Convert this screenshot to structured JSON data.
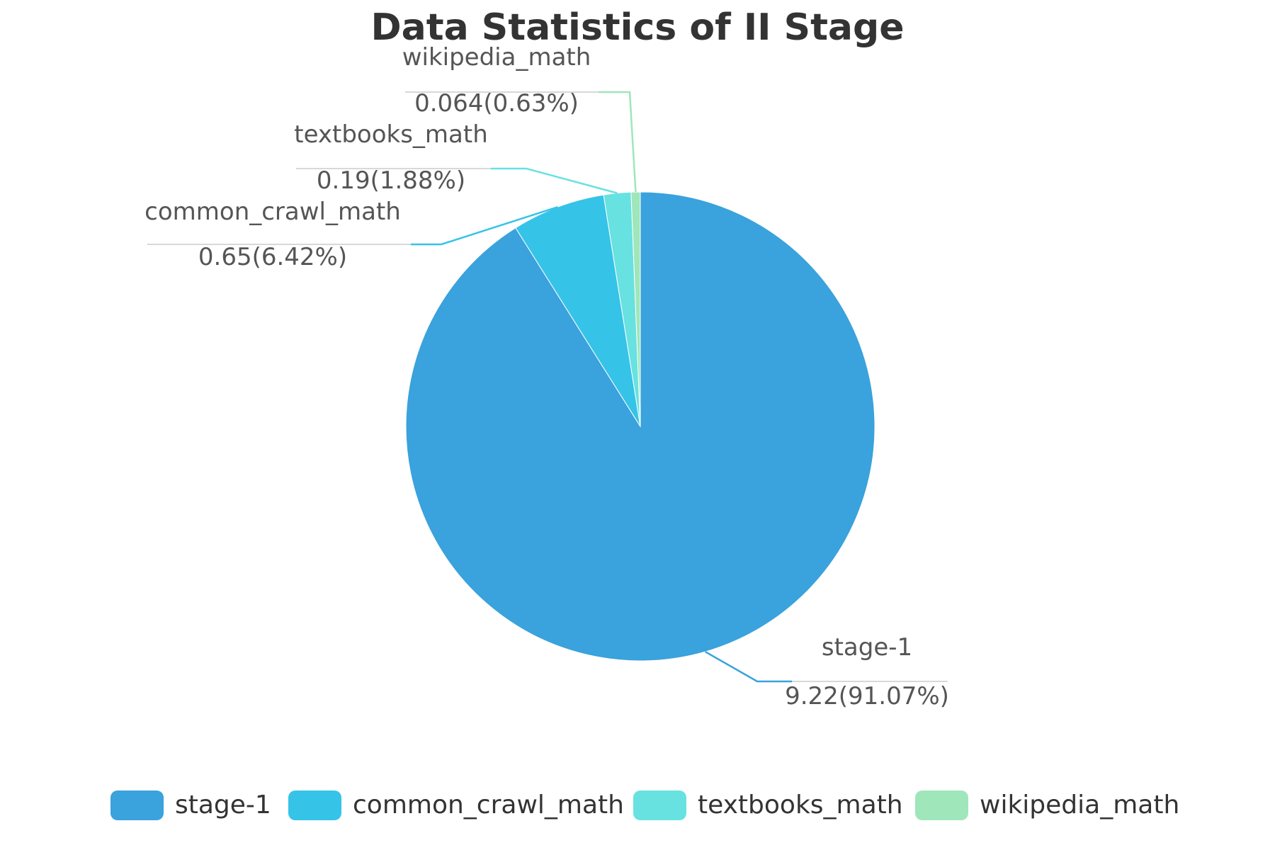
{
  "chart_data": {
    "type": "pie",
    "title": "Data Statistics of II Stage",
    "slices": [
      {
        "name": "stage-1",
        "value": 9.22,
        "percent_label": "91.07%",
        "color": "#3aa2dc"
      },
      {
        "name": "common_crawl_math",
        "value": 0.65,
        "percent_label": "6.42%",
        "color": "#36c3e8"
      },
      {
        "name": "textbooks_math",
        "value": 0.19,
        "percent_label": "1.88%",
        "color": "#68e1e1"
      },
      {
        "name": "wikipedia_math",
        "value": 0.064,
        "percent_label": "0.63%",
        "color": "#9fe6bb"
      }
    ],
    "labels": [
      {
        "name": "stage-1",
        "value_text": "9.22(91.07%)"
      },
      {
        "name": "common_crawl_math",
        "value_text": "0.65(6.42%)"
      },
      {
        "name": "textbooks_math",
        "value_text": "0.19(1.88%)"
      },
      {
        "name": "wikipedia_math",
        "value_text": "0.064(0.63%)"
      }
    ],
    "legend": {
      "position": "bottom",
      "items": [
        "stage-1",
        "common_crawl_math",
        "textbooks_math",
        "wikipedia_math"
      ]
    }
  }
}
